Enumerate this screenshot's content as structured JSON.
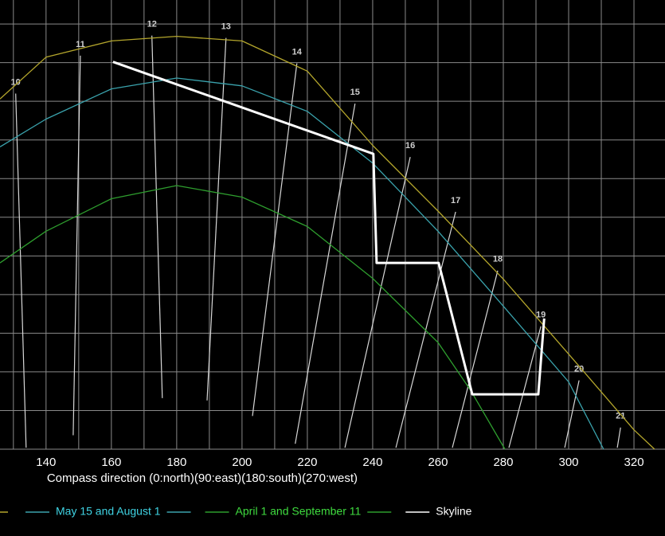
{
  "chart_data": {
    "type": "line",
    "x_label": "Compass direction (0:north)(90:east)(180:south)(270:west)",
    "xlim": [
      125.9,
      329.5
    ],
    "ylim": [
      0,
      58.1
    ],
    "xticks": [
      140,
      160,
      180,
      200,
      220,
      240,
      260,
      280,
      300,
      320
    ],
    "x_minor_ticks": [
      130,
      150,
      170,
      190,
      210,
      230,
      250,
      270,
      290,
      310
    ],
    "grid_y": [
      0,
      5,
      10,
      15,
      20,
      25,
      30,
      35,
      40,
      45,
      50,
      55
    ],
    "series": [
      {
        "color": "#b4a62c",
        "x": [
          125.9,
          140,
          160,
          180,
          200,
          220,
          240,
          260,
          280,
          300,
          320,
          326.3
        ],
        "values": [
          45.3,
          50.7,
          52.8,
          53.4,
          52.8,
          48.9,
          39.3,
          30.8,
          22,
          12.3,
          2.5,
          0
        ]
      },
      {
        "name": "May 15 and August 1",
        "color": "#3aa3ad",
        "text_color": "#3fd3e3",
        "x": [
          125.9,
          140,
          160,
          180,
          200,
          220,
          240,
          260,
          280,
          300,
          310.7
        ],
        "values": [
          39.1,
          42.7,
          46.6,
          48,
          47,
          43.7,
          37,
          28.2,
          18.5,
          8.7,
          0
        ]
      },
      {
        "name": "April 1 and September 11",
        "color": "#2e9e2e",
        "text_color": "#3fdc3f",
        "x": [
          125.9,
          140,
          160,
          180,
          200,
          220,
          240,
          260,
          270,
          280.5
        ],
        "values": [
          24.1,
          28.2,
          32.4,
          34.1,
          32.6,
          28.8,
          22.1,
          13.8,
          7.6,
          0
        ]
      },
      {
        "name": "Skyline",
        "color": "#ffffff",
        "text_color": "#ffffff",
        "width": 3,
        "x": [
          160.5,
          240.2,
          241.2,
          260.2,
          270.5,
          290.7,
          292.5
        ],
        "values": [
          50.1,
          38.2,
          24.1,
          24.1,
          7.1,
          7.1,
          16.9
        ]
      }
    ],
    "hour_lines": [
      {
        "label": "10",
        "x": [
          130.7,
          133.9
        ],
        "values": [
          46,
          0.2
        ]
      },
      {
        "label": "11",
        "x": [
          150.5,
          148.3
        ],
        "values": [
          50.9,
          1.8
        ]
      },
      {
        "label": "12",
        "x": [
          172.4,
          175.6
        ],
        "values": [
          53.5,
          6.6
        ]
      },
      {
        "label": "13",
        "x": [
          195.1,
          189.3
        ],
        "values": [
          53.2,
          6.3
        ]
      },
      {
        "label": "14",
        "x": [
          216.8,
          203.2
        ],
        "values": [
          49.9,
          4.3
        ]
      },
      {
        "label": "15",
        "x": [
          234.6,
          216.3
        ],
        "values": [
          44.7,
          0.7
        ]
      },
      {
        "label": "16",
        "x": [
          251.5,
          231.5
        ],
        "values": [
          37.8,
          0.2
        ]
      },
      {
        "label": "17",
        "x": [
          265.4,
          247.1
        ],
        "values": [
          30.7,
          0.2
        ]
      },
      {
        "label": "18",
        "x": [
          278.3,
          264.4
        ],
        "values": [
          23.1,
          0.2
        ]
      },
      {
        "label": "19",
        "x": [
          291.5,
          281.7
        ],
        "values": [
          15.9,
          0.2
        ]
      },
      {
        "label": "20",
        "x": [
          303.2,
          298.8
        ],
        "values": [
          8.9,
          0.2
        ]
      },
      {
        "label": "21",
        "x": [
          315.9,
          314.9
        ],
        "values": [
          2.8,
          0.2
        ]
      }
    ]
  }
}
